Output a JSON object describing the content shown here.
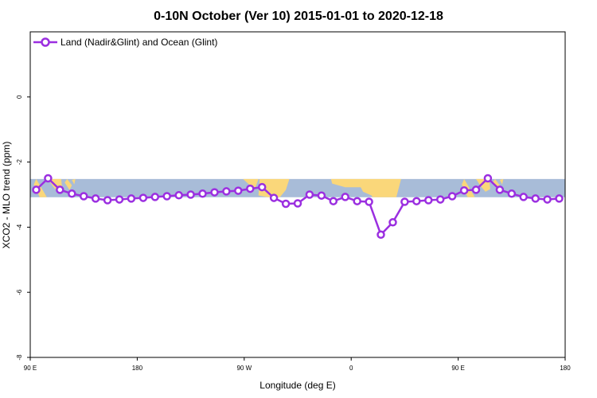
{
  "chart_data": {
    "type": "line",
    "title": "0-10N October (Ver 10)   2015-01-01 to 2020-12-18",
    "xlabel": "Longitude (deg E)",
    "ylabel": "XCO2 - MLO trend (ppm)",
    "xlim": [
      90,
      540
    ],
    "ylim": [
      -8,
      2
    ],
    "x_ticks": [
      {
        "value": 90,
        "label": "90 E"
      },
      {
        "value": 180,
        "label": "180"
      },
      {
        "value": 270,
        "label": "90 W"
      },
      {
        "value": 360,
        "label": "0"
      },
      {
        "value": 450,
        "label": "90 E"
      },
      {
        "value": 540,
        "label": "180"
      }
    ],
    "y_ticks": [
      {
        "value": 0,
        "label": "0"
      },
      {
        "value": -2,
        "label": "-2"
      },
      {
        "value": -4,
        "label": "-4"
      },
      {
        "value": -6,
        "label": "-6"
      },
      {
        "value": -8,
        "label": "-8"
      }
    ],
    "series": [
      {
        "name": "Land (Nadir&Glint) and Ocean (Glint)",
        "color": "#9b2fe0",
        "x": [
          95,
          105,
          115,
          125,
          135,
          145,
          155,
          165,
          175,
          185,
          195,
          205,
          215,
          225,
          235,
          245,
          255,
          265,
          275,
          285,
          295,
          305,
          315,
          325,
          335,
          345,
          355,
          365,
          375,
          385,
          395,
          405,
          415,
          425,
          435,
          445,
          455,
          465,
          475,
          485,
          495,
          505,
          515,
          525,
          535
        ],
        "values": [
          -2.85,
          -2.5,
          -2.85,
          -2.97,
          -3.05,
          -3.12,
          -3.17,
          -3.15,
          -3.12,
          -3.1,
          -3.07,
          -3.05,
          -3.02,
          -3.0,
          -2.97,
          -2.93,
          -2.9,
          -2.88,
          -2.82,
          -2.77,
          -3.1,
          -3.28,
          -3.27,
          -3.0,
          -3.03,
          -3.2,
          -3.07,
          -3.2,
          -3.22,
          -4.23,
          -3.85,
          -3.22,
          -3.2,
          -3.17,
          -3.15,
          -3.05,
          -2.87,
          -2.85,
          -2.5,
          -2.85,
          -2.97,
          -3.07,
          -3.12,
          -3.15,
          -3.12
        ]
      }
    ],
    "background_map": {
      "description": "world map strip 0-10N",
      "y_range": [
        -3.08,
        -2.52
      ],
      "ocean_color": "#a8bcd8",
      "land_color": "#fad77a"
    },
    "legend": {
      "position": "top-left"
    }
  }
}
